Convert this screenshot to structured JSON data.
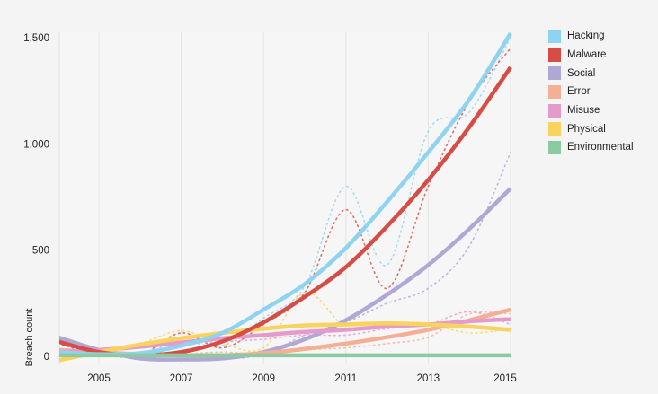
{
  "chart_data": {
    "type": "line",
    "title": "",
    "xlabel": "",
    "ylabel": "Breach count",
    "x": [
      2004,
      2005,
      2006,
      2007,
      2008,
      2009,
      2010,
      2011,
      2012,
      2013,
      2014,
      2015
    ],
    "xticks": [
      "2005",
      "2007",
      "2009",
      "2011",
      "2013",
      "2015"
    ],
    "yticks": [
      "0",
      "500",
      "1,000",
      "1,500"
    ],
    "ylim": [
      -60,
      1500
    ],
    "xlim": [
      2004,
      2015
    ],
    "grid": "vertical at labeled years",
    "legend_position": "right",
    "series": [
      {
        "name": "Hacking",
        "color": "#8fd3f2",
        "trend": [
          20,
          10,
          15,
          50,
          110,
          220,
          340,
          510,
          727,
          960,
          1210,
          1520
        ],
        "actual": [
          30,
          5,
          10,
          70,
          50,
          180,
          330,
          800,
          430,
          1060,
          1150,
          1500
        ]
      },
      {
        "name": "Malware",
        "color": "#d64d45",
        "trend": [
          70,
          20,
          5,
          20,
          70,
          160,
          280,
          420,
          612,
          830,
          1080,
          1360
        ],
        "actual": [
          60,
          10,
          5,
          110,
          40,
          150,
          300,
          690,
          320,
          800,
          1200,
          1450
        ]
      },
      {
        "name": "Social",
        "color": "#b0a8d4",
        "trend": [
          90,
          30,
          -10,
          -15,
          -10,
          20,
          80,
          170,
          290,
          430,
          600,
          790
        ],
        "actual": [
          80,
          20,
          -10,
          10,
          -10,
          10,
          100,
          160,
          250,
          320,
          520,
          960
        ]
      },
      {
        "name": "Error",
        "color": "#f4b096",
        "trend": [
          30,
          20,
          10,
          5,
          5,
          15,
          35,
          60,
          90,
          125,
          170,
          220
        ],
        "actual": [
          20,
          10,
          5,
          10,
          20,
          10,
          30,
          40,
          60,
          90,
          200,
          200
        ]
      },
      {
        "name": "Misuse",
        "color": "#e49bcb",
        "trend": [
          20,
          30,
          45,
          65,
          85,
          100,
          115,
          125,
          140,
          150,
          165,
          175
        ],
        "actual": [
          20,
          30,
          40,
          60,
          70,
          80,
          100,
          100,
          130,
          150,
          210,
          150
        ]
      },
      {
        "name": "Physical",
        "color": "#f8d35e",
        "trend": [
          -20,
          20,
          55,
          85,
          110,
          130,
          145,
          150,
          155,
          150,
          140,
          125
        ],
        "actual": [
          -10,
          30,
          60,
          120,
          60,
          40,
          300,
          140,
          150,
          150,
          110,
          130
        ]
      },
      {
        "name": "Environmental",
        "color": "#8ccba0",
        "trend": [
          5,
          5,
          5,
          5,
          5,
          5,
          5,
          5,
          5,
          5,
          5,
          5
        ],
        "actual": [
          5,
          5,
          5,
          5,
          5,
          5,
          5,
          5,
          5,
          5,
          5,
          5
        ]
      }
    ]
  }
}
